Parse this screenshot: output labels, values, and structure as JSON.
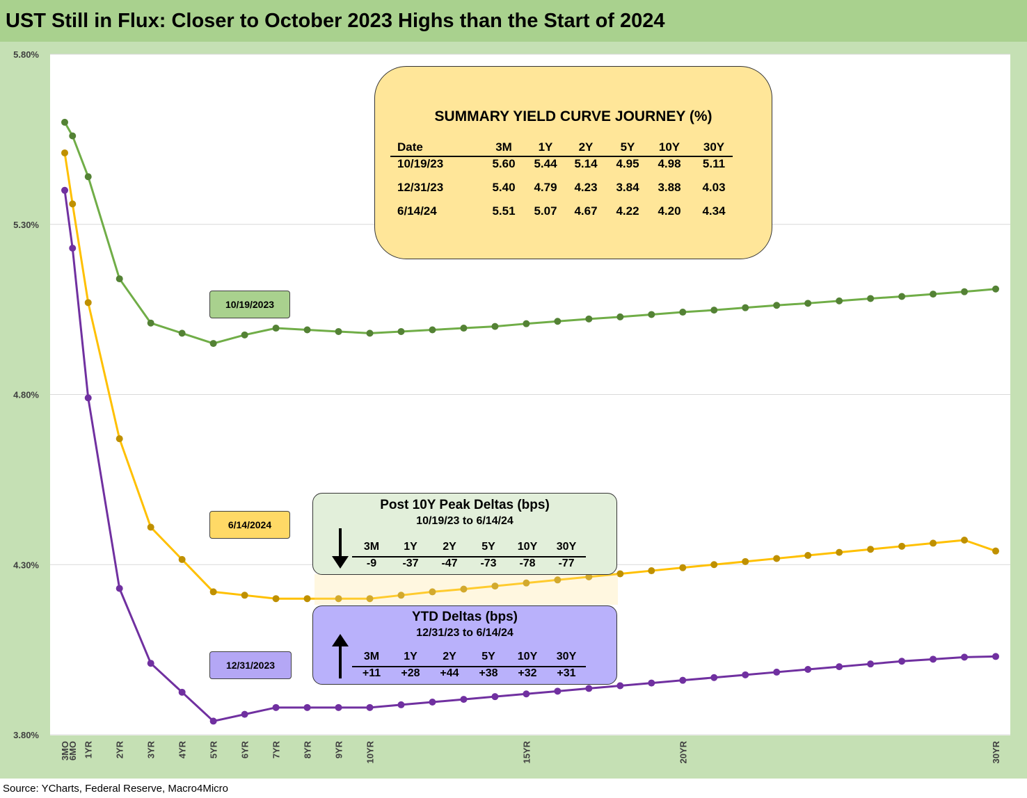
{
  "title": "UST Still in Flux: Closer to October 2023 Highs than the Start of 2024",
  "source": "Source: YCharts, Federal Reserve, Macro4Micro",
  "colors": {
    "header": "#a9d18e",
    "frame": "#c5e0b4",
    "oct": "#70ad47",
    "jun": "#ffc000",
    "dec": "#7030a0"
  },
  "chart_data": {
    "type": "line",
    "x": [
      0.25,
      0.5,
      1,
      2,
      3,
      4,
      5,
      6,
      7,
      8,
      9,
      10,
      11,
      12,
      13,
      14,
      15,
      16,
      17,
      18,
      19,
      20,
      21,
      22,
      23,
      24,
      25,
      26,
      27,
      28,
      29,
      30
    ],
    "x_tick_labels": [
      {
        "x": 0.25,
        "label": "3MO"
      },
      {
        "x": 0.5,
        "label": "6MO"
      },
      {
        "x": 1,
        "label": "1YR"
      },
      {
        "x": 2,
        "label": "2YR"
      },
      {
        "x": 3,
        "label": "3YR"
      },
      {
        "x": 4,
        "label": "4YR"
      },
      {
        "x": 5,
        "label": "5YR"
      },
      {
        "x": 6,
        "label": "6YR"
      },
      {
        "x": 7,
        "label": "7YR"
      },
      {
        "x": 8,
        "label": "8YR"
      },
      {
        "x": 9,
        "label": "9YR"
      },
      {
        "x": 10,
        "label": "10YR"
      },
      {
        "x": 15,
        "label": "15YR"
      },
      {
        "x": 20,
        "label": "20YR"
      },
      {
        "x": 30,
        "label": "30YR"
      }
    ],
    "ylim": [
      3.8,
      5.8
    ],
    "y_ticks": [
      "3.80%",
      "4.30%",
      "4.80%",
      "5.30%",
      "5.80%"
    ],
    "grid": true,
    "series": [
      {
        "name": "10/19/2023",
        "color": "#70ad47",
        "marker": "#548235",
        "values": [
          5.6,
          5.56,
          5.44,
          5.14,
          5.01,
          4.98,
          4.95,
          4.975,
          4.995,
          4.99,
          4.985,
          4.98,
          4.985,
          4.99,
          4.995,
          5.0,
          5.008,
          5.015,
          5.022,
          5.028,
          5.035,
          5.042,
          5.048,
          5.055,
          5.062,
          5.068,
          5.075,
          5.082,
          5.088,
          5.095,
          5.102,
          5.11
        ]
      },
      {
        "name": "6/14/2024",
        "color": "#ffc000",
        "marker": "#bf9000",
        "values": [
          5.51,
          5.36,
          5.07,
          4.67,
          4.41,
          4.315,
          4.22,
          4.21,
          4.2,
          4.2,
          4.2,
          4.2,
          4.21,
          4.22,
          4.228,
          4.237,
          4.246,
          4.255,
          4.264,
          4.273,
          4.282,
          4.291,
          4.3,
          4.309,
          4.318,
          4.327,
          4.336,
          4.345,
          4.354,
          4.363,
          4.372,
          4.34
        ]
      },
      {
        "name": "12/31/2023",
        "color": "#7030a0",
        "marker": "#7030a0",
        "values": [
          5.4,
          5.23,
          4.79,
          4.23,
          4.01,
          3.925,
          3.84,
          3.86,
          3.88,
          3.88,
          3.88,
          3.88,
          3.888,
          3.896,
          3.904,
          3.912,
          3.92,
          3.928,
          3.936,
          3.944,
          3.952,
          3.96,
          3.968,
          3.976,
          3.984,
          3.992,
          4.0,
          4.008,
          4.016,
          4.022,
          4.028,
          4.03
        ]
      }
    ]
  },
  "labels": {
    "oct": "10/19/2023",
    "jun": "6/14/2024",
    "dec": "12/31/2023"
  },
  "summary": {
    "title": "SUMMARY YIELD CURVE JOURNEY (%)",
    "columns": [
      "Date",
      "3M",
      "1Y",
      "2Y",
      "5Y",
      "10Y",
      "30Y"
    ],
    "rows": [
      [
        "10/19/23",
        "5.60",
        "5.44",
        "5.14",
        "4.95",
        "4.98",
        "5.11"
      ],
      [
        "12/31/23",
        "5.40",
        "4.79",
        "4.23",
        "3.84",
        "3.88",
        "4.03"
      ],
      [
        "6/14/24",
        "5.51",
        "5.07",
        "4.67",
        "4.22",
        "4.20",
        "4.34"
      ]
    ]
  },
  "peak_deltas": {
    "title": "Post 10Y Peak Deltas (bps)",
    "subtitle": "10/19/23 to 6/14/24",
    "columns": [
      "3M",
      "1Y",
      "2Y",
      "5Y",
      "10Y",
      "30Y"
    ],
    "values": [
      "-9",
      "-37",
      "-47",
      "-73",
      "-78",
      "-77"
    ]
  },
  "ytd_deltas": {
    "title": "YTD Deltas (bps)",
    "subtitle": "12/31/23 to 6/14/24",
    "columns": [
      "3M",
      "1Y",
      "2Y",
      "5Y",
      "10Y",
      "30Y"
    ],
    "values": [
      "+11",
      "+28",
      "+44",
      "+38",
      "+32",
      "+31"
    ]
  }
}
